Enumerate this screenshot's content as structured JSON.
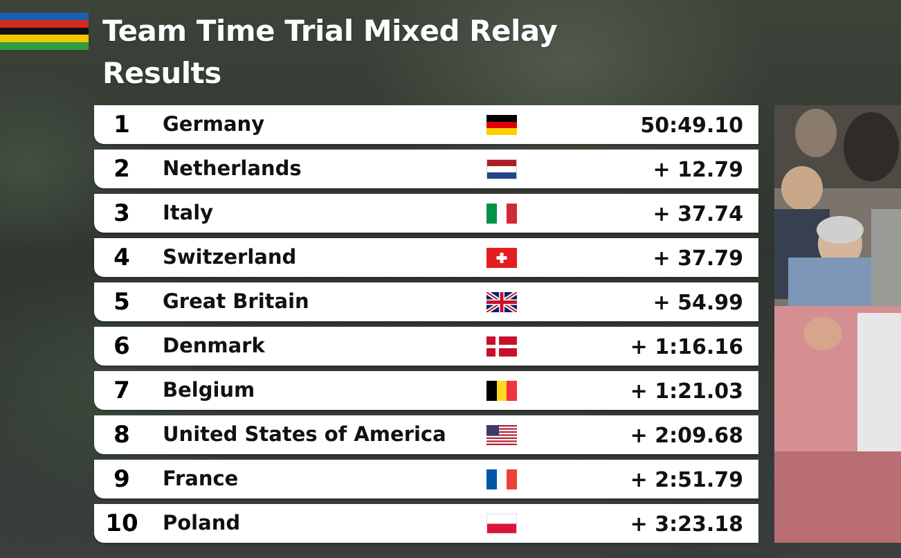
{
  "header": {
    "title_line1": "Team Time Trial Mixed Relay",
    "title_line2": "Results"
  },
  "logo": {
    "icon": "rainbow-stripes-icon",
    "stripes": [
      "#1b5fb0",
      "#d52b1e",
      "#111111",
      "#f2c500",
      "#2f9e3f"
    ]
  },
  "results": [
    {
      "position": "1",
      "country": "Germany",
      "flag": "germany-flag-icon",
      "time": "50:49.10"
    },
    {
      "position": "2",
      "country": "Netherlands",
      "flag": "netherlands-flag-icon",
      "time": "+ 12.79"
    },
    {
      "position": "3",
      "country": "Italy",
      "flag": "italy-flag-icon",
      "time": "+ 37.74"
    },
    {
      "position": "4",
      "country": "Switzerland",
      "flag": "switzerland-flag-icon",
      "time": "+ 37.79"
    },
    {
      "position": "5",
      "country": "Great Britain",
      "flag": "great-britain-flag-icon",
      "time": "+ 54.99"
    },
    {
      "position": "6",
      "country": "Denmark",
      "flag": "denmark-flag-icon",
      "time": "+ 1:16.16"
    },
    {
      "position": "7",
      "country": "Belgium",
      "flag": "belgium-flag-icon",
      "time": "+ 1:21.03"
    },
    {
      "position": "8",
      "country": "United States of America",
      "flag": "usa-flag-icon",
      "time": "+ 2:09.68"
    },
    {
      "position": "9",
      "country": "France",
      "flag": "france-flag-icon",
      "time": "+ 2:51.79"
    },
    {
      "position": "10",
      "country": "Poland",
      "flag": "poland-flag-icon",
      "time": "+ 3:23.18"
    }
  ],
  "colors": {
    "row_background": "#ffffff",
    "text": "#111111",
    "title_text": "#ffffff"
  }
}
